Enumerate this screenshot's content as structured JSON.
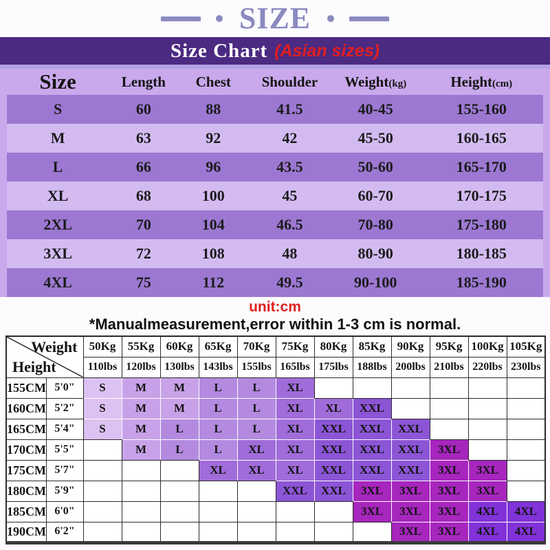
{
  "page_heading": "SIZE",
  "notes": {
    "unit": "unit:cm",
    "measurement": "*Manualmeasurement,error within 1-3 cm is normal."
  },
  "colors": {
    "heading": "#8a8ac0",
    "banner_bg": "#4b2a82",
    "banner_title": "#ffffff",
    "accent_red": "#e01f1f",
    "strip": "#b2a1e4",
    "table1_bg": "#c9a9ec",
    "table1_dark_row": "#9c78d2",
    "table1_light_row": "#d3bbf2",
    "grid_line": "#2b2b2b",
    "size_fill": {
      "S": "#dcc2f2",
      "M": "#c8a2e8",
      "L": "#b38ae0",
      "XL": "#a06cd9",
      "XXL": "#8c55d6",
      "3XL": "#a726bd",
      "4XL": "#8132d8"
    }
  },
  "chart_data": [
    {
      "type": "table",
      "title": "Size Chart",
      "subtitle": "(Asian sizes)",
      "columns": [
        "Size",
        "Length",
        "Chest",
        "Shoulder",
        "Weight(kg)",
        "Height(cm)"
      ],
      "rows": [
        [
          "S",
          "60",
          "88",
          "41.5",
          "40-45",
          "155-160"
        ],
        [
          "M",
          "63",
          "92",
          "42",
          "45-50",
          "160-165"
        ],
        [
          "L",
          "66",
          "96",
          "43.5",
          "50-60",
          "165-170"
        ],
        [
          "XL",
          "68",
          "100",
          "45",
          "60-70",
          "170-175"
        ],
        [
          "2XL",
          "70",
          "104",
          "46.5",
          "70-80",
          "175-180"
        ],
        [
          "3XL",
          "72",
          "108",
          "48",
          "80-90",
          "180-185"
        ],
        [
          "4XL",
          "75",
          "112",
          "49.5",
          "90-100",
          "185-190"
        ]
      ]
    },
    {
      "type": "table",
      "corner": {
        "top_right": "Weight",
        "bottom_left": "Height"
      },
      "weight_headers_kg": [
        "50Kg",
        "55Kg",
        "60Kg",
        "65Kg",
        "70Kg",
        "75Kg",
        "80Kg",
        "85Kg",
        "90Kg",
        "95Kg",
        "100Kg",
        "105Kg"
      ],
      "weight_headers_lbs": [
        "110lbs",
        "120lbs",
        "130lbs",
        "143lbs",
        "155lbs",
        "165lbs",
        "175lbs",
        "188lbs",
        "200lbs",
        "210lbs",
        "220lbs",
        "230lbs"
      ],
      "height_rows": [
        {
          "cm": "155CM",
          "ft": "5'0\"",
          "sizes": [
            "S",
            "M",
            "M",
            "L",
            "L",
            "XL",
            "",
            "",
            "",
            "",
            "",
            ""
          ]
        },
        {
          "cm": "160CM",
          "ft": "5'2\"",
          "sizes": [
            "S",
            "M",
            "M",
            "L",
            "L",
            "XL",
            "XL",
            "XXL",
            "",
            "",
            "",
            ""
          ]
        },
        {
          "cm": "165CM",
          "ft": "5'4\"",
          "sizes": [
            "S",
            "M",
            "L",
            "L",
            "L",
            "XL",
            "XXL",
            "XXL",
            "XXL",
            "",
            "",
            ""
          ]
        },
        {
          "cm": "170CM",
          "ft": "5'5\"",
          "sizes": [
            "",
            "M",
            "L",
            "L",
            "XL",
            "XL",
            "XXL",
            "XXL",
            "XXL",
            "3XL",
            "",
            ""
          ]
        },
        {
          "cm": "175CM",
          "ft": "5'7\"",
          "sizes": [
            "",
            "",
            "",
            "XL",
            "XL",
            "XL",
            "XXL",
            "XXL",
            "XXL",
            "3XL",
            "3XL",
            ""
          ]
        },
        {
          "cm": "180CM",
          "ft": "5'9\"",
          "sizes": [
            "",
            "",
            "",
            "",
            "",
            "XXL",
            "XXL",
            "3XL",
            "3XL",
            "3XL",
            "3XL",
            ""
          ]
        },
        {
          "cm": "185CM",
          "ft": "6'0\"",
          "sizes": [
            "",
            "",
            "",
            "",
            "",
            "",
            "",
            "3XL",
            "3XL",
            "3XL",
            "4XL",
            "4XL"
          ]
        },
        {
          "cm": "190CM",
          "ft": "6'2\"",
          "sizes": [
            "",
            "",
            "",
            "",
            "",
            "",
            "",
            "",
            "3XL",
            "3XL",
            "4XL",
            "4XL"
          ]
        }
      ]
    }
  ]
}
